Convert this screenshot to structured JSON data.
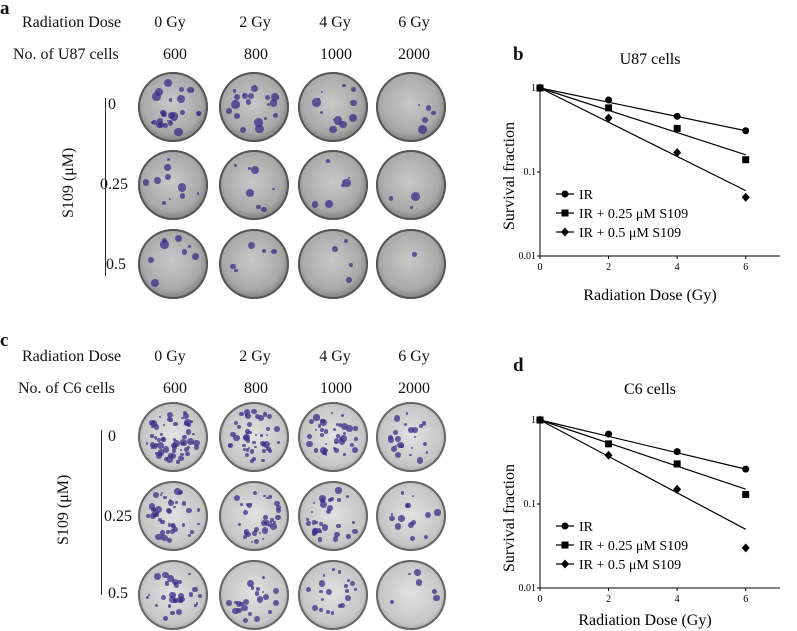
{
  "panels": {
    "a": "a",
    "b": "b",
    "c": "c",
    "d": "d"
  },
  "dish_panels": [
    {
      "dose_header": "Radiation Dose",
      "doses": [
        "0 Gy",
        "2 Gy",
        "4 Gy",
        "6 Gy"
      ],
      "cells_header": "No. of U87 cells",
      "cell_counts": [
        "600",
        "800",
        "1000",
        "2000"
      ],
      "rows": [
        "0",
        "0.25",
        "0.5"
      ],
      "side_label": "S109 (μM)",
      "colony_density": [
        [
          26,
          20,
          12,
          5
        ],
        [
          10,
          7,
          6,
          3
        ],
        [
          8,
          5,
          4,
          1
        ]
      ]
    },
    {
      "dose_header": "Radiation Dose",
      "doses": [
        "0 Gy",
        "2 Gy",
        "4 Gy",
        "6 Gy"
      ],
      "cells_header": "No. of C6 cells",
      "cell_counts": [
        "600",
        "800",
        "1000",
        "2000"
      ],
      "rows": [
        "0",
        "0.25",
        "0.5"
      ],
      "side_label": "S109 (μM)",
      "colony_density": [
        [
          60,
          45,
          40,
          22
        ],
        [
          40,
          35,
          30,
          14
        ],
        [
          30,
          22,
          20,
          6
        ]
      ]
    }
  ],
  "chart_data": [
    {
      "type": "line",
      "title": "U87 cells",
      "xlabel": "Radiation Dose (Gy)",
      "ylabel": "Survival fraction",
      "y_scale": "log",
      "xlim": [
        0,
        7
      ],
      "ylim": [
        0.01,
        1
      ],
      "x_ticks": [
        "0",
        "2",
        "4",
        "6"
      ],
      "y_ticks": [
        "0.01",
        "0.1",
        "1"
      ],
      "legend_position": "bottom-left",
      "series": [
        {
          "name": "IR",
          "marker": "circle",
          "x": [
            0,
            2,
            4,
            6
          ],
          "y": [
            1.0,
            0.72,
            0.46,
            0.31
          ],
          "fit": [
            1.0,
            0.31
          ]
        },
        {
          "name": "IR + 0.25 μM S109",
          "marker": "square",
          "x": [
            0,
            2,
            4,
            6
          ],
          "y": [
            1.0,
            0.58,
            0.33,
            0.14
          ],
          "fit": [
            1.0,
            0.16
          ]
        },
        {
          "name": "IR + 0.5 μM S109",
          "marker": "diamond",
          "x": [
            0,
            2,
            4,
            6
          ],
          "y": [
            1.0,
            0.44,
            0.17,
            0.05
          ],
          "fit": [
            1.0,
            0.06
          ]
        }
      ]
    },
    {
      "type": "line",
      "title": "C6 cells",
      "xlabel": "Radiation Dose (Gy)",
      "ylabel": "Survival fraction",
      "y_scale": "log",
      "xlim": [
        0,
        7
      ],
      "ylim": [
        0.01,
        1
      ],
      "x_ticks": [
        "0",
        "2",
        "4",
        "6"
      ],
      "y_ticks": [
        "0.01",
        "0.1",
        "1"
      ],
      "legend_position": "bottom-left",
      "series": [
        {
          "name": "IR",
          "marker": "circle",
          "x": [
            0,
            2,
            4,
            6
          ],
          "y": [
            1.0,
            0.68,
            0.42,
            0.26
          ],
          "fit": [
            1.0,
            0.26
          ]
        },
        {
          "name": "IR + 0.25 μM S109",
          "marker": "square",
          "x": [
            0,
            2,
            4,
            6
          ],
          "y": [
            1.0,
            0.52,
            0.3,
            0.13
          ],
          "fit": [
            1.0,
            0.15
          ]
        },
        {
          "name": "IR + 0.5 μM S109",
          "marker": "diamond",
          "x": [
            0,
            2,
            4,
            6
          ],
          "y": [
            1.0,
            0.38,
            0.15,
            0.03
          ],
          "fit": [
            1.0,
            0.05
          ]
        }
      ]
    }
  ]
}
